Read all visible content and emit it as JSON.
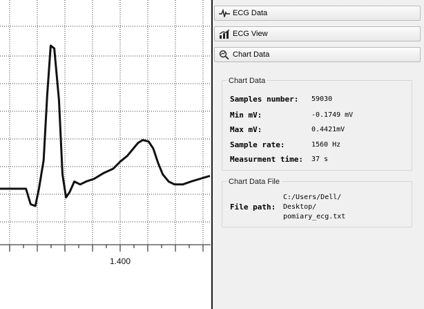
{
  "nav": {
    "ecg_data_label": "ECG Data",
    "ecg_view_label": "ECG View",
    "chart_data_label": "Chart Data"
  },
  "chart_data_group": {
    "title": "Chart Data",
    "samples_label": "Samples number:",
    "samples_value": "59030",
    "min_label": "Min mV:",
    "min_value": "-0.1749 mV",
    "max_label": "Max mV:",
    "max_value": "0.4421mV",
    "rate_label": "Sample rate:",
    "rate_value": "1560 Hz",
    "time_label": "Measurment time:",
    "time_value": "37 s"
  },
  "file_group": {
    "title": "Chart Data File",
    "path_label": "File path:",
    "path_lines": [
      "C:/Users/Dell/",
      "Desktop/",
      "pomiary_ecg.txt"
    ]
  },
  "chart_data": {
    "type": "line",
    "x_tick_labels": [
      "1.400"
    ],
    "xlabel": "",
    "ylabel": "",
    "grid": true,
    "series": [
      {
        "values": [
          [
            0.0,
            0.0
          ],
          [
            0.1,
            0.0
          ],
          [
            0.22,
            0.0
          ],
          [
            0.26,
            -0.09
          ],
          [
            0.3,
            -0.1
          ],
          [
            0.33,
            0.0
          ],
          [
            0.37,
            0.2
          ],
          [
            0.4,
            0.65
          ],
          [
            0.43,
            1.0
          ],
          [
            0.46,
            0.98
          ],
          [
            0.5,
            0.62
          ],
          [
            0.53,
            0.1
          ],
          [
            0.56,
            -0.05
          ],
          [
            0.59,
            -0.02
          ],
          [
            0.63,
            0.05
          ],
          [
            0.68,
            0.03
          ],
          [
            0.73,
            0.05
          ],
          [
            0.8,
            0.07
          ],
          [
            0.88,
            0.11
          ],
          [
            0.96,
            0.14
          ],
          [
            1.02,
            0.19
          ],
          [
            1.08,
            0.23
          ],
          [
            1.13,
            0.28
          ],
          [
            1.17,
            0.32
          ],
          [
            1.21,
            0.34
          ],
          [
            1.26,
            0.33
          ],
          [
            1.3,
            0.28
          ],
          [
            1.34,
            0.18
          ],
          [
            1.38,
            0.1
          ],
          [
            1.43,
            0.05
          ],
          [
            1.48,
            0.03
          ],
          [
            1.55,
            0.03
          ],
          [
            1.62,
            0.05
          ],
          [
            1.7,
            0.07
          ],
          [
            1.78,
            0.09
          ]
        ]
      }
    ]
  }
}
